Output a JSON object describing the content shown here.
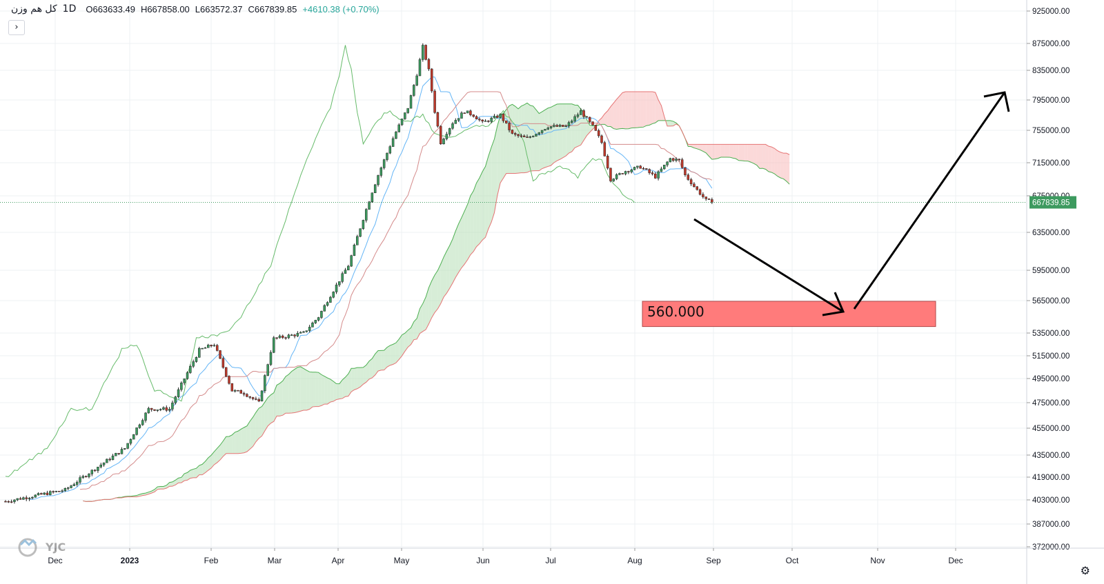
{
  "header": {
    "symbol": "کل هم وزن",
    "interval": "1D",
    "open": "O663633.49",
    "high": "H667858.00",
    "low": "L663572.37",
    "close": "C667839.85",
    "change": "+4610.38 (+0.70%)",
    "collapse_glyph": "›"
  },
  "price_label": "667839.85",
  "target_label": "560.000",
  "settings_icon": "gear-icon",
  "watermark": "YJC",
  "colors": {
    "up": "#26a69a",
    "down": "#ef5350",
    "cloud_bull": "#b7dfb7",
    "cloud_bear": "#f7b9b9",
    "tenkan": "#64b5f6",
    "kijun": "#c2185b",
    "chikou": "#66bb6a",
    "target_box": "#ff7b7b"
  },
  "chart_data": {
    "type": "candlestick",
    "y_ticks": [
      "925000.00",
      "875000.00",
      "835000.00",
      "795000.00",
      "755000.00",
      "715000.00",
      "675000.00",
      "635000.00",
      "595000.00",
      "565000.00",
      "535000.00",
      "515000.00",
      "495000.00",
      "475000.00",
      "455000.00",
      "435000.00",
      "419000.00",
      "403000.00",
      "387000.00",
      "372000.00"
    ],
    "x_ticks": [
      "Dec",
      "2023",
      "Feb",
      "Mar",
      "Apr",
      "May",
      "Jun",
      "Jul",
      "Aug",
      "Sep",
      "Oct",
      "Nov",
      "Dec"
    ],
    "last_price": 667839.85,
    "annotations": [
      {
        "type": "target_box",
        "label": "560.000"
      },
      {
        "type": "arrow",
        "note": "down to target then up"
      }
    ]
  }
}
